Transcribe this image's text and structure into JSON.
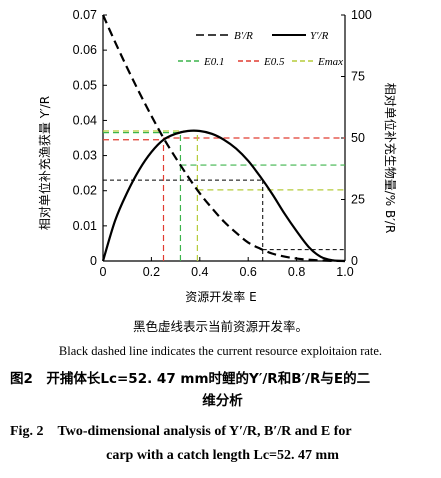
{
  "chart_data": {
    "type": "line",
    "xlabel": "资源开发率 E",
    "ylabel_left": "相对单位补充渔获量 Y′/R",
    "ylabel_right": "相对单位补充生物量/% B′/R",
    "xlim": [
      0,
      1.0
    ],
    "ylim_left": [
      0,
      0.07
    ],
    "ylim_right": [
      0,
      100
    ],
    "x_ticks": [
      "0",
      "0.2",
      "0.4",
      "0.6",
      "0.8",
      "1.0"
    ],
    "y_left_ticks": [
      "0",
      "0.01",
      "0.02",
      "0.03",
      "0.04",
      "0.05",
      "0.06",
      "0.07"
    ],
    "y_right_ticks": [
      "0",
      "25",
      "50",
      "75",
      "100"
    ],
    "legend": [
      {
        "label": "B′/R",
        "style": "dashed",
        "color": "#000000"
      },
      {
        "label": "Y′/R",
        "style": "solid",
        "color": "#000000"
      },
      {
        "label": "E0.1",
        "style": "dashed",
        "color": "#3cb44b"
      },
      {
        "label": "E0.5",
        "style": "dashed",
        "color": "#e03c31"
      },
      {
        "label": "Emax",
        "style": "dashed",
        "color": "#b5cc3a"
      }
    ],
    "series": [
      {
        "name": "Y′/R",
        "axis": "left",
        "x": [
          0,
          0.05,
          0.1,
          0.15,
          0.2,
          0.25,
          0.3,
          0.35,
          0.4,
          0.45,
          0.5,
          0.55,
          0.6,
          0.65,
          0.7,
          0.75,
          0.8,
          0.85,
          0.9,
          0.95,
          1.0
        ],
        "y": [
          0,
          0.0115,
          0.0195,
          0.026,
          0.031,
          0.0345,
          0.0362,
          0.037,
          0.037,
          0.0362,
          0.0345,
          0.032,
          0.0285,
          0.024,
          0.019,
          0.0135,
          0.0085,
          0.004,
          0.0012,
          0.0002,
          0
        ]
      },
      {
        "name": "B′/R",
        "axis": "right",
        "x": [
          0,
          0.05,
          0.1,
          0.15,
          0.2,
          0.25,
          0.3,
          0.35,
          0.4,
          0.45,
          0.5,
          0.55,
          0.6,
          0.65,
          0.7,
          0.75,
          0.8,
          0.85,
          0.9,
          0.95,
          1.0
        ],
        "y": [
          100,
          89,
          78.5,
          68.5,
          59,
          50,
          42,
          34.5,
          27.5,
          21.5,
          16,
          11.5,
          7.5,
          5,
          3,
          1.8,
          1,
          0.5,
          0.2,
          0.05,
          0
        ]
      }
    ],
    "reference_points": {
      "E0.1": {
        "E": 0.32,
        "color": "#3cb44b"
      },
      "E0.5": {
        "E": 0.25,
        "color": "#e03c31"
      },
      "Emax": {
        "E": 0.39,
        "color": "#b5cc3a"
      },
      "current_E": 0.66
    }
  },
  "captions": {
    "note_cn": "黑色虚线表示当前资源开发率。",
    "note_en": "Black dashed line indicates the current resource exploitaion rate.",
    "fig_cn_line1": "图2　开捕体长Lc=52. 47 mm时鲤的Y′/R和B′/R与E的二",
    "fig_cn_line2": "维分析",
    "fig_en_line1": "Fig. 2　Two-dimensional analysis of Y′/R, B′/R and E for",
    "fig_en_line2": "carp with a catch length Lc=52. 47 mm"
  }
}
